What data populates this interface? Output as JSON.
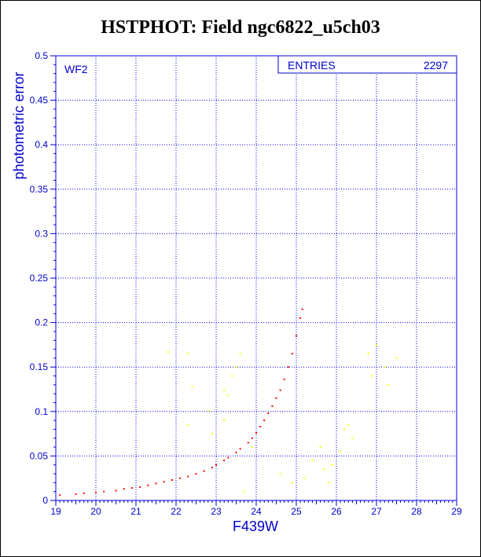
{
  "colors": {
    "accent": "#0000cc",
    "grid": "#0000ff",
    "series_main": "#ff0000",
    "series_secondary": "#ffff00"
  },
  "title": "HSTPHOT: Field ngc6822_u5ch03",
  "stats_box": {
    "label": "ENTRIES",
    "value": "2297"
  },
  "chart_data": {
    "type": "scatter",
    "title": "HSTPHOT: Field ngc6822_u5ch03",
    "xlabel": "F439W",
    "ylabel": "photometric error",
    "panel_label": "WF2",
    "xlim": [
      19,
      29
    ],
    "ylim": [
      0,
      0.5
    ],
    "x_ticks": [
      "19",
      "20",
      "21",
      "22",
      "23",
      "24",
      "25",
      "26",
      "27",
      "28",
      "29"
    ],
    "y_ticks": [
      "0",
      "0.05",
      "0.1",
      "0.15",
      "0.2",
      "0.25",
      "0.3",
      "0.35",
      "0.4",
      "0.45",
      "0.5"
    ],
    "grid": true,
    "entries": 2297,
    "series": [
      {
        "color": "#ff0000",
        "points": [
          [
            19.1,
            0.006
          ],
          [
            19.5,
            0.007
          ],
          [
            19.7,
            0.008
          ],
          [
            20.0,
            0.009
          ],
          [
            20.2,
            0.01
          ],
          [
            20.5,
            0.011
          ],
          [
            20.7,
            0.013
          ],
          [
            20.9,
            0.014
          ],
          [
            21.1,
            0.015
          ],
          [
            21.3,
            0.017
          ],
          [
            21.5,
            0.019
          ],
          [
            21.7,
            0.021
          ],
          [
            21.9,
            0.023
          ],
          [
            22.1,
            0.025
          ],
          [
            22.3,
            0.027
          ],
          [
            22.5,
            0.03
          ],
          [
            22.7,
            0.033
          ],
          [
            22.9,
            0.037
          ],
          [
            23.0,
            0.04
          ],
          [
            23.2,
            0.045
          ],
          [
            23.3,
            0.048
          ],
          [
            23.5,
            0.054
          ],
          [
            23.6,
            0.058
          ],
          [
            23.8,
            0.065
          ],
          [
            23.9,
            0.07
          ],
          [
            24.0,
            0.076
          ],
          [
            24.1,
            0.083
          ],
          [
            24.2,
            0.09
          ],
          [
            24.3,
            0.098
          ],
          [
            24.4,
            0.106
          ],
          [
            24.5,
            0.115
          ],
          [
            24.6,
            0.124
          ],
          [
            24.7,
            0.136
          ],
          [
            24.8,
            0.15
          ],
          [
            24.9,
            0.165
          ],
          [
            25.0,
            0.185
          ],
          [
            25.1,
            0.205
          ],
          [
            25.15,
            0.215
          ]
        ]
      },
      {
        "color": "#ffff00",
        "points": [
          [
            21.8,
            0.167
          ],
          [
            22.3,
            0.165
          ],
          [
            22.4,
            0.128
          ],
          [
            22.3,
            0.085
          ],
          [
            22.8,
            0.101
          ],
          [
            23.2,
            0.124
          ],
          [
            23.3,
            0.118
          ],
          [
            23.4,
            0.14
          ],
          [
            23.5,
            0.15
          ],
          [
            23.2,
            0.09
          ],
          [
            22.9,
            0.075
          ],
          [
            23.6,
            0.165
          ],
          [
            23.9,
            0.06
          ],
          [
            23.7,
            0.01
          ],
          [
            24.6,
            0.03
          ],
          [
            24.9,
            0.02
          ],
          [
            25.2,
            0.025
          ],
          [
            25.4,
            0.045
          ],
          [
            25.6,
            0.06
          ],
          [
            25.7,
            0.035
          ],
          [
            25.9,
            0.04
          ],
          [
            26.1,
            0.055
          ],
          [
            26.2,
            0.08
          ],
          [
            26.3,
            0.085
          ],
          [
            25.8,
            0.02
          ],
          [
            26.4,
            0.07
          ],
          [
            26.8,
            0.165
          ],
          [
            26.9,
            0.14
          ],
          [
            27.0,
            0.175
          ],
          [
            27.2,
            0.15
          ],
          [
            27.3,
            0.13
          ],
          [
            27.5,
            0.16
          ]
        ]
      }
    ]
  }
}
